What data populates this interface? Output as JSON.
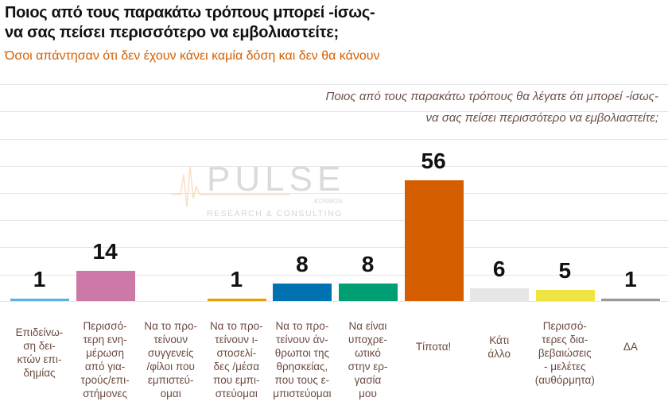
{
  "title_line1": "Ποιος από τους παρακάτω τρόπους μπορεί -ίσως-",
  "title_line2": "να σας πείσει περισσότερο να εμβολιαστείτε;",
  "subtitle": "Όσοι απάντησαν ότι δεν έχουν κάνει καμία δόση και δεν θα κάνουν",
  "question_line1": "Ποιος από τους παρακάτω τρόπους θα λέγατε ότι μπορεί -ίσως-",
  "question_line2": "να σας πείσει περισσότερο να εμβολιαστείτε;",
  "watermark": {
    "brand": "PULSE",
    "sub": "RESEARCH & CONSULTING",
    "tag": "KOSMON"
  },
  "chart_data": {
    "type": "bar",
    "title": "Ποιος από τους παρακάτω τρόπους μπορεί -ίσως- να σας πείσει περισσότερο να εμβολιαστείτε;",
    "ylim": [
      0,
      60
    ],
    "grid": true,
    "categories": [
      "Επιδείνω-\nση δει-\nκτών επι-\nδημίας",
      "Περισσό-\nτερη ενη-\nμέρωση\nαπό για-\nτρούς/επι-\nστήμονες",
      "Να το προ-\nτείνουν\nσυγγενείς\n/φίλοι που\nεμπιστεύ-\nομαι",
      "Να το προ-\nτείνουν ι-\nστοσελί-\nδες /μέσα\nπου εμπι-\nστεύομαι",
      "Να το προ-\nτείνουν άν-\nθρωποι της\nθρησκείας,\nπου τους ε-\nμπιστεύομαι",
      "Να είναι\nυποχρε-\nωτικό\nστην ερ-\nγασία\nμου",
      "Τίποτα!",
      "Κάτι\nάλλο",
      "Περισσό-\nτερες δια-\nβεβαιώσεις\n- μελέτες\n(αυθόρμητα)",
      "ΔΑ"
    ],
    "values": [
      1,
      14,
      null,
      1,
      8,
      8,
      56,
      6,
      5,
      1
    ],
    "labels": [
      "1",
      "14",
      "",
      "1",
      "8",
      "8",
      "56",
      "6",
      "5",
      "1"
    ],
    "colors": [
      "#56B4E9",
      "#CC79A7",
      "#ffffff",
      "#E69F00",
      "#0072B2",
      "#009E73",
      "#D55E00",
      "#E6E6E6",
      "#F0E442",
      "#999999"
    ]
  }
}
